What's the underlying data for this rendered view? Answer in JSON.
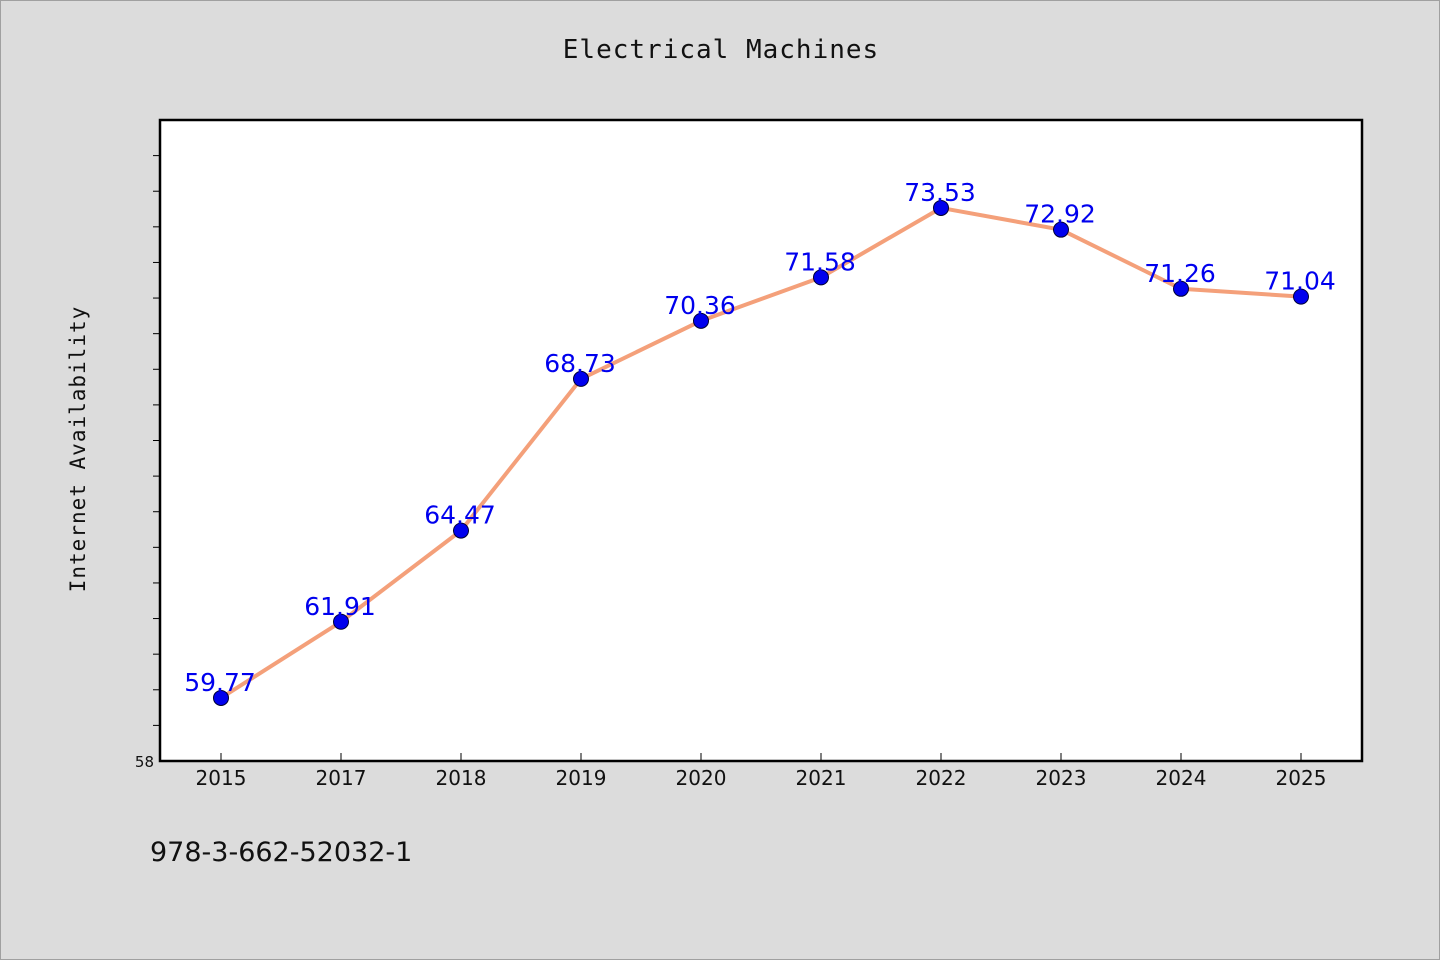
{
  "chart_data": {
    "type": "line",
    "title": "Electrical Machines",
    "xlabel": "",
    "ylabel": "Internet Availability",
    "categories": [
      "2015",
      "2017",
      "2018",
      "2019",
      "2020",
      "2021",
      "2022",
      "2023",
      "2024",
      "2025"
    ],
    "series": [
      {
        "values": [
          59.77,
          61.91,
          64.47,
          68.73,
          70.36,
          71.58,
          73.53,
          72.92,
          71.26,
          71.04
        ],
        "labels": [
          "59.77",
          "61.91",
          "64.47",
          "68.73",
          "70.36",
          "71.58",
          "73.53",
          "72.92",
          "71.26",
          "71.04"
        ]
      }
    ],
    "ylim": [
      58,
      76
    ],
    "y_tick_label": "58",
    "grid": false,
    "legend": "none",
    "colors": {
      "line": "#f4a07a",
      "marker": "#0000ee",
      "label": "#0000ee",
      "plot_background": "#ffffff",
      "page_background": "#dcdcdc"
    }
  },
  "footer": {
    "isbn": "978-3-662-52032-1"
  }
}
